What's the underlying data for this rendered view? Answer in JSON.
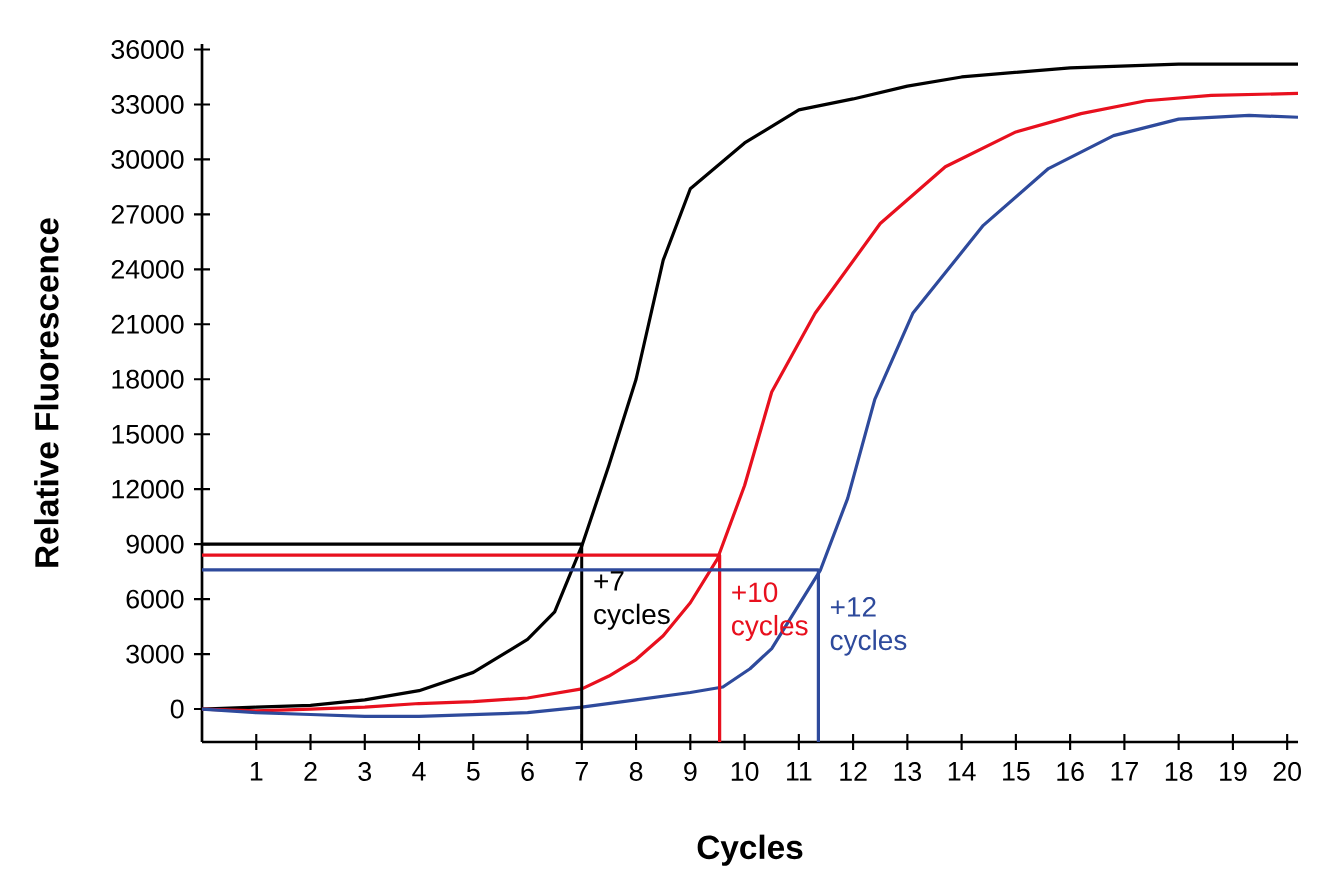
{
  "chart_data": {
    "type": "line",
    "xlabel": "Cycles",
    "ylabel": "Relative Fluorescence",
    "xlim": [
      0,
      20.2
    ],
    "ylim": [
      -1800,
      36300
    ],
    "xticks": [
      1,
      2,
      3,
      4,
      5,
      6,
      7,
      8,
      9,
      10,
      11,
      12,
      13,
      14,
      15,
      16,
      17,
      18,
      19,
      20
    ],
    "yticks": [
      0,
      3000,
      6000,
      9000,
      12000,
      15000,
      18000,
      21000,
      24000,
      27000,
      30000,
      33000,
      36000
    ],
    "series": [
      {
        "color": "#000000",
        "x": [
          0,
          1,
          2,
          3,
          4,
          5,
          6,
          6.5,
          7,
          7.5,
          8,
          8.5,
          9,
          10,
          11,
          12,
          13,
          14,
          16,
          18,
          20,
          20.2
        ],
        "values": [
          0,
          100,
          200,
          500,
          1000,
          2000,
          3800,
          5300,
          8900,
          13300,
          18000,
          24500,
          28400,
          30900,
          32700,
          33300,
          34000,
          34500,
          35000,
          35200,
          35200,
          35200
        ]
      },
      {
        "color": "#e8101e",
        "x": [
          0,
          1,
          2,
          3,
          4,
          5,
          6,
          7,
          7.5,
          8,
          8.5,
          9,
          9.5,
          10,
          10.5,
          11.3,
          12.5,
          13.7,
          15,
          16.2,
          17.4,
          18.6,
          20.2
        ],
        "values": [
          0,
          -100,
          0,
          100,
          300,
          400,
          600,
          1100,
          1800,
          2700,
          4000,
          5800,
          8200,
          12200,
          17300,
          21600,
          26500,
          29600,
          31500,
          32500,
          33200,
          33500,
          33600
        ]
      },
      {
        "color": "#2e4a9c",
        "x": [
          0,
          1,
          2,
          3,
          4,
          5,
          6,
          7,
          8,
          9,
          9.6,
          10.1,
          10.5,
          11.4,
          11.9,
          12.4,
          13.1,
          14.4,
          15.6,
          16.8,
          18,
          19.3,
          20.2
        ],
        "values": [
          0,
          -200,
          -300,
          -400,
          -400,
          -300,
          -200,
          100,
          500,
          900,
          1200,
          2200,
          3300,
          7600,
          11500,
          16900,
          21600,
          26400,
          29500,
          31300,
          32200,
          32400,
          32300
        ]
      },
      {
        "color": "#000000",
        "x": [
          0,
          7.0,
          7.0
        ],
        "values": [
          9000,
          9000,
          -1800
        ]
      },
      {
        "color": "#e8101e",
        "x": [
          0,
          9.54,
          9.54
        ],
        "values": [
          8400,
          8400,
          -1800
        ]
      },
      {
        "color": "#2e4a9c",
        "x": [
          0,
          11.36,
          11.36
        ],
        "values": [
          7600,
          7600,
          -1800
        ]
      }
    ],
    "annotations": [
      {
        "text": "+7 cycles",
        "x": 7.0,
        "y": 9000
      },
      {
        "text": "+10 cycles",
        "x": 9.54,
        "y": 8400
      },
      {
        "text": "+12 cycles",
        "x": 11.36,
        "y": 7600
      }
    ]
  }
}
